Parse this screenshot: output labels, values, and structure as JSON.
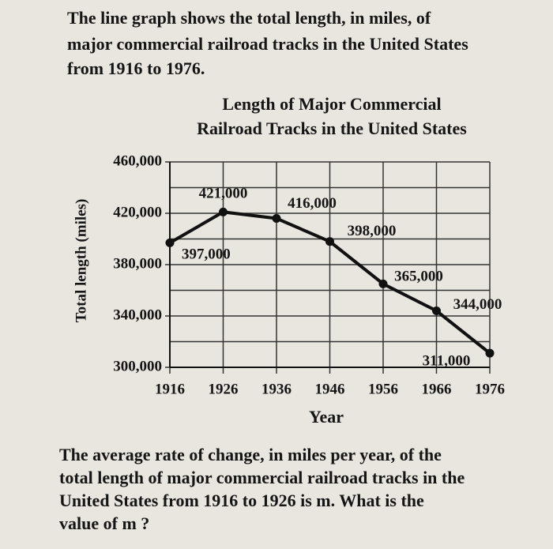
{
  "intro": [
    "The line graph shows the total length, in miles, of",
    "major commercial railroad tracks in the United States",
    "from 1916 to 1976."
  ],
  "chart_data": {
    "type": "line",
    "title": [
      "Length of Major Commercial",
      "Railroad Tracks in the United States"
    ],
    "x_label": "Year",
    "y_label": "Total length (miles)",
    "x": [
      1916,
      1926,
      1936,
      1946,
      1956,
      1966,
      1976
    ],
    "series": [
      {
        "name": "Total length",
        "color": "#111111",
        "values": [
          397000,
          421000,
          416000,
          398000,
          365000,
          344000,
          311000
        ],
        "value_labels": [
          "397,000",
          "421,000",
          "416,000",
          "398,000",
          "365,000",
          "344,000",
          "311,000"
        ]
      }
    ],
    "xlim": [
      1916,
      1976
    ],
    "xticks": [
      1916,
      1926,
      1936,
      1946,
      1956,
      1966,
      1976
    ],
    "ylim": [
      300000,
      460000
    ],
    "yticks": [
      {
        "value": 300000,
        "label": "300,000"
      },
      {
        "value": 340000,
        "label": "340,000"
      },
      {
        "value": 380000,
        "label": "380,000"
      },
      {
        "value": 420000,
        "label": "420,000"
      },
      {
        "value": 460000,
        "label": "460,000"
      }
    ],
    "y_minor_ticks": [
      320000,
      360000,
      400000,
      440000
    ],
    "grid": true
  },
  "question": [
    "The average rate of change, in miles per year, of the",
    "total length of major commercial railroad tracks in the",
    "United States from 1916 to 1926 is m. What is the",
    "value of m ?"
  ]
}
